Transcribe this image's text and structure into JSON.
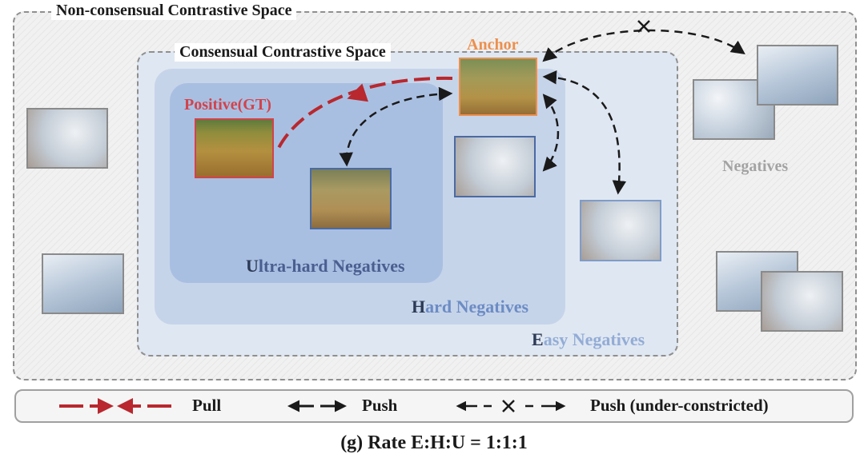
{
  "regions": {
    "non_consensual_title": "Non-consensual Contrastive Space",
    "consensual_title": "Consensual Contrastive Space",
    "ultra": {
      "lead": "U",
      "rest": "ltra-hard Negatives"
    },
    "hard": {
      "lead": "H",
      "rest": "ard Negatives"
    },
    "easy": {
      "lead": "E",
      "rest": "asy Negatives"
    }
  },
  "labels": {
    "positive": "Positive(GT)",
    "anchor": "Anchor",
    "negatives": "Negatives"
  },
  "legend": {
    "pull": "Pull",
    "push": "Push",
    "push_under": "Push (under-constricted)"
  },
  "caption": "(g) Rate E:H:U = 1:1:1",
  "colors": {
    "pull": "#b8282e",
    "push": "#1a1a1a",
    "positive_border": "#d2434b",
    "anchor_border": "#ec8f4e"
  }
}
